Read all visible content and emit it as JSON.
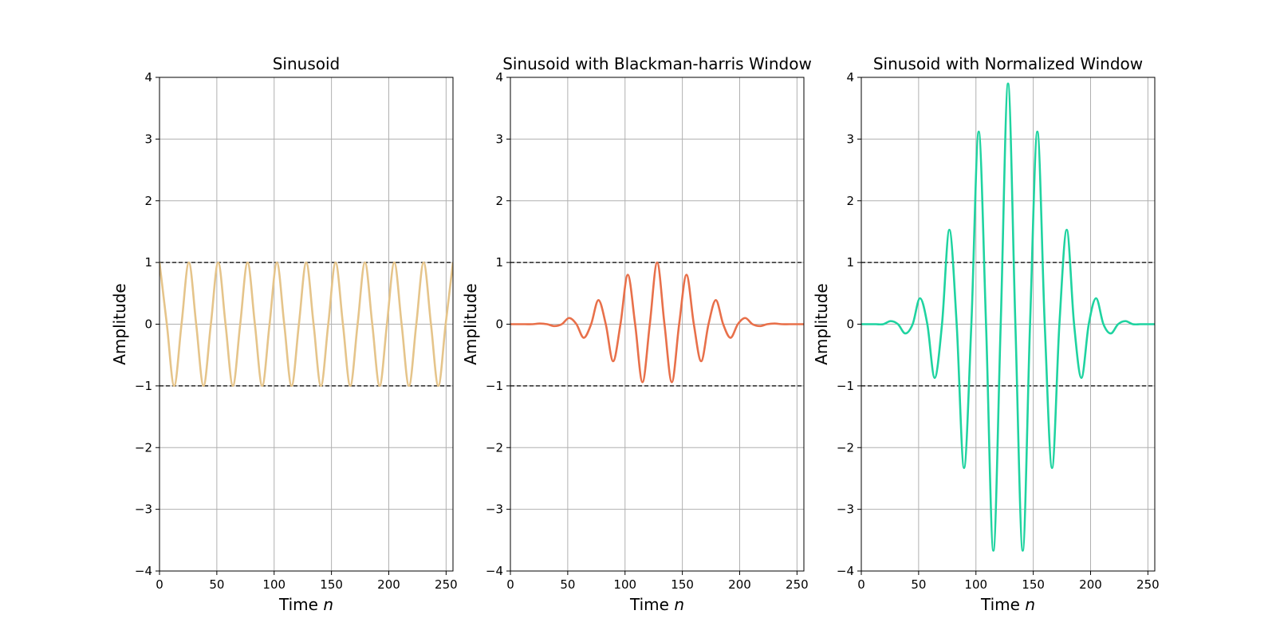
{
  "chart_data": [
    {
      "type": "line",
      "title": "Sinusoid",
      "xlabel": "Time",
      "xlabel_var": "n",
      "ylabel": "Amplitude",
      "xlim": [
        0,
        256
      ],
      "ylim": [
        -4,
        4
      ],
      "xticks": [
        "0",
        "50",
        "100",
        "150",
        "200",
        "250"
      ],
      "yticks": [
        "−4",
        "−3",
        "−2",
        "−1",
        "0",
        "1",
        "2",
        "3",
        "4"
      ],
      "grid": true,
      "reference_lines": [
        1,
        -1
      ],
      "series": [
        {
          "color": "#e5c48a",
          "x": [
            0,
            6.4,
            12.8,
            19.2,
            25.6,
            32,
            38.4,
            44.8,
            51.2,
            57.6,
            64,
            70.4,
            76.8,
            83.2,
            89.6,
            96,
            102.4,
            108.8,
            115.2,
            121.6,
            128,
            134.4,
            140.8,
            147.2,
            153.6,
            160,
            166.4,
            172.8,
            179.2,
            185.6,
            192,
            198.4,
            204.8,
            211.2,
            217.6,
            224,
            230.4,
            236.8,
            243.2,
            249.6,
            256
          ],
          "y": [
            1,
            0,
            -1,
            0,
            1,
            0,
            -1,
            0,
            1,
            0,
            -1,
            0,
            1,
            0,
            -1,
            0,
            1,
            0,
            -1,
            0,
            1,
            0,
            -1,
            0,
            1,
            0,
            -1,
            0,
            1,
            0,
            -1,
            0,
            1,
            0,
            -1,
            0,
            1,
            0,
            -1,
            0,
            1
          ]
        }
      ]
    },
    {
      "type": "line",
      "title": "Sinusoid with Blackman-harris Window",
      "xlabel": "Time",
      "xlabel_var": "n",
      "ylabel": "Amplitude",
      "xlim": [
        0,
        256
      ],
      "ylim": [
        -4,
        4
      ],
      "xticks": [
        "0",
        "50",
        "100",
        "150",
        "200",
        "250"
      ],
      "yticks": [
        "−4",
        "−3",
        "−2",
        "−1",
        "0",
        "1",
        "2",
        "3",
        "4"
      ],
      "grid": true,
      "reference_lines": [
        1,
        -1
      ],
      "series": [
        {
          "color": "#e8704a",
          "x": [
            0,
            6.4,
            12.8,
            19.2,
            25.6,
            32,
            38.4,
            44.8,
            51.2,
            57.6,
            64,
            70.4,
            76.8,
            83.2,
            89.6,
            96,
            102.4,
            108.8,
            115.2,
            121.6,
            128,
            134.4,
            140.8,
            147.2,
            153.6,
            160,
            166.4,
            172.8,
            179.2,
            185.6,
            192,
            198.4,
            204.8,
            211.2,
            217.6,
            224,
            230.4,
            236.8,
            243.2,
            249.6,
            256
          ],
          "y": [
            0,
            0,
            0,
            0,
            0.01,
            0,
            -0.03,
            0,
            0.1,
            0,
            -0.22,
            0,
            0.39,
            0,
            -0.6,
            0,
            0.8,
            0,
            -0.94,
            0,
            1,
            0,
            -0.94,
            0,
            0.8,
            0,
            -0.6,
            0,
            0.39,
            0,
            -0.22,
            0,
            0.1,
            0,
            -0.03,
            0,
            0.01,
            0,
            0,
            0,
            0
          ]
        }
      ]
    },
    {
      "type": "line",
      "title": "Sinusoid with Normalized Window",
      "xlabel": "Time",
      "xlabel_var": "n",
      "ylabel": "Amplitude",
      "xlim": [
        0,
        256
      ],
      "ylim": [
        -4,
        4
      ],
      "xticks": [
        "0",
        "50",
        "100",
        "150",
        "200",
        "250"
      ],
      "yticks": [
        "−4",
        "−3",
        "−2",
        "−1",
        "0",
        "1",
        "2",
        "3",
        "4"
      ],
      "grid": true,
      "reference_lines": [
        1,
        -1
      ],
      "series": [
        {
          "color": "#1fd3a0",
          "x": [
            0,
            6.4,
            12.8,
            19.2,
            25.6,
            32,
            38.4,
            44.8,
            51.2,
            57.6,
            64,
            70.4,
            76.8,
            83.2,
            89.6,
            96,
            102.4,
            108.8,
            115.2,
            121.6,
            128,
            134.4,
            140.8,
            147.2,
            153.6,
            160,
            166.4,
            172.8,
            179.2,
            185.6,
            192,
            198.4,
            204.8,
            211.2,
            217.6,
            224,
            230.4,
            236.8,
            243.2,
            249.6,
            256
          ],
          "y": [
            0,
            0,
            0,
            0,
            0.05,
            0,
            -0.15,
            0,
            0.42,
            0,
            -0.87,
            0,
            1.53,
            0,
            -2.33,
            0,
            3.12,
            0,
            -3.67,
            0,
            3.9,
            0,
            -3.67,
            0,
            3.12,
            0,
            -2.33,
            0,
            1.53,
            0,
            -0.87,
            0,
            0.42,
            0,
            -0.15,
            0,
            0.05,
            0,
            0,
            0,
            0
          ]
        }
      ]
    }
  ]
}
